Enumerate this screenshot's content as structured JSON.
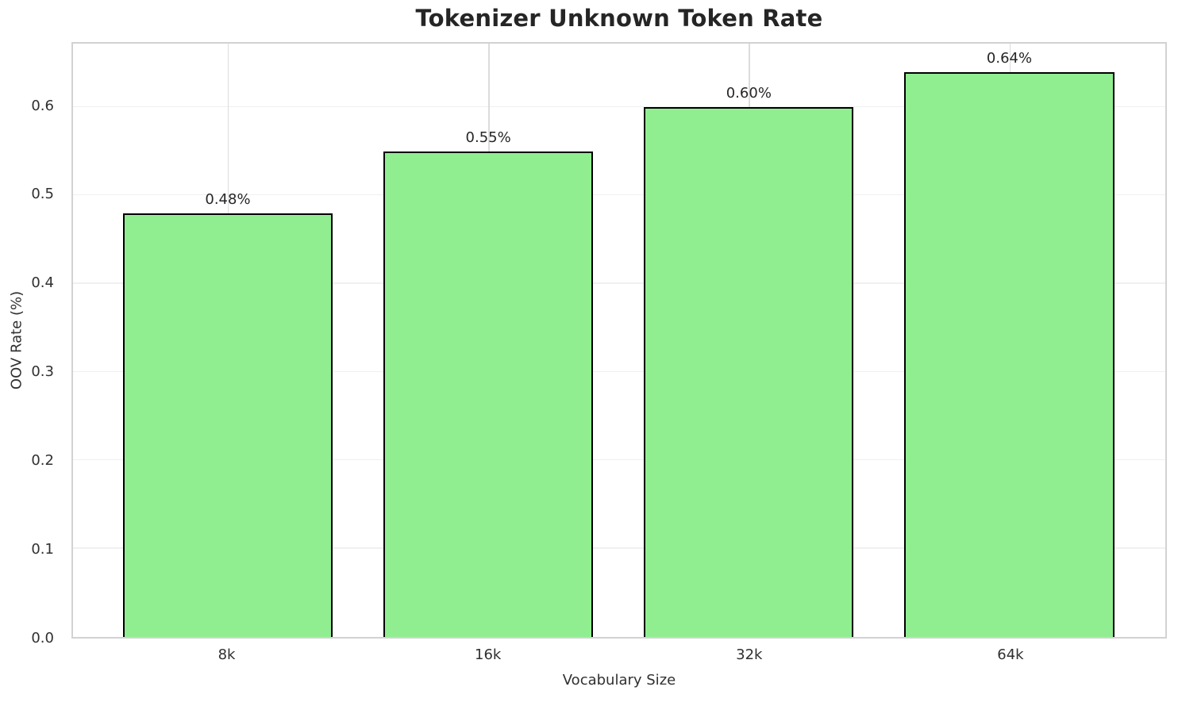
{
  "chart_data": {
    "type": "bar",
    "title": "Tokenizer Unknown Token Rate",
    "xlabel": "Vocabulary Size",
    "ylabel": "OOV Rate (%)",
    "categories": [
      "8k",
      "16k",
      "32k",
      "64k"
    ],
    "values": [
      0.48,
      0.55,
      0.6,
      0.64
    ],
    "bar_labels": [
      "0.48%",
      "0.55%",
      "0.60%",
      "0.64%"
    ],
    "ytick_labels": [
      "0.0",
      "0.1",
      "0.2",
      "0.3",
      "0.4",
      "0.5",
      "0.6"
    ],
    "yticks": [
      0.0,
      0.1,
      0.2,
      0.3,
      0.4,
      0.5,
      0.6
    ],
    "ylim": [
      0,
      0.672
    ],
    "grid": true,
    "legend": "none",
    "colors": {
      "bar_fill": "#90EE90",
      "bar_edge": "#000000",
      "grid_horizontal": "#f0f0f0",
      "grid_vertical": "#dcdcdc",
      "spine": "#d2d2d2",
      "title_text": "#252525",
      "tick_text": "#303030",
      "value_label_text": "#262626",
      "background": "#ffffff"
    }
  }
}
